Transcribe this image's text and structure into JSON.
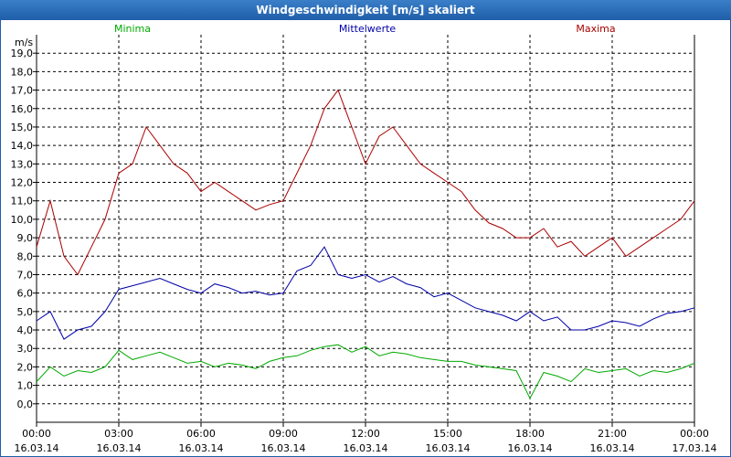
{
  "window": {
    "title": "Windgeschwindigkeit [m/s] skaliert"
  },
  "chart_data": {
    "type": "line",
    "yunit": "m/s",
    "ylim": [
      -1.0,
      20.0
    ],
    "yticks": [
      "19,0",
      "18,0",
      "17,0",
      "16,0",
      "15,0",
      "14,0",
      "13,0",
      "12,0",
      "11,0",
      "10,0",
      "9,0",
      "8,0",
      "7,0",
      "6,0",
      "5,0",
      "4,0",
      "3,0",
      "2,0",
      "1,0",
      "0,0"
    ],
    "yticks_values": [
      19,
      18,
      17,
      16,
      15,
      14,
      13,
      12,
      11,
      10,
      9,
      8,
      7,
      6,
      5,
      4,
      3,
      2,
      1,
      0
    ],
    "x_ticks": [
      {
        "time": "00:00",
        "date": "16.03.14"
      },
      {
        "time": "03:00",
        "date": "16.03.14"
      },
      {
        "time": "06:00",
        "date": "16.03.14"
      },
      {
        "time": "09:00",
        "date": "16.03.14"
      },
      {
        "time": "12:00",
        "date": "16.03.14"
      },
      {
        "time": "15:00",
        "date": "16.03.14"
      },
      {
        "time": "18:00",
        "date": "16.03.14"
      },
      {
        "time": "21:00",
        "date": "16.03.14"
      },
      {
        "time": "00:00",
        "date": "17.03.14"
      }
    ],
    "x_hours": [
      0,
      3,
      6,
      9,
      12,
      15,
      18,
      21,
      24
    ],
    "grid": true,
    "series": [
      {
        "name": "Minima",
        "color": "#00aa00",
        "x": [
          0.0,
          0.5,
          1.0,
          1.5,
          2.0,
          2.5,
          3.0,
          3.5,
          4.0,
          4.5,
          5.0,
          5.5,
          6.0,
          6.5,
          7.0,
          7.5,
          8.0,
          8.5,
          9.0,
          9.5,
          10.0,
          10.5,
          11.0,
          11.5,
          12.0,
          12.5,
          13.0,
          13.5,
          14.0,
          14.5,
          15.0,
          15.5,
          16.0,
          16.5,
          17.0,
          17.5,
          18.0,
          18.5,
          19.0,
          19.5,
          20.0,
          20.5,
          21.0,
          21.5,
          22.0,
          22.5,
          23.0,
          23.5,
          24.0
        ],
        "values": [
          1.2,
          2.0,
          1.5,
          1.8,
          1.7,
          2.0,
          2.9,
          2.4,
          2.6,
          2.8,
          2.5,
          2.2,
          2.3,
          2.0,
          2.2,
          2.1,
          1.9,
          2.3,
          2.5,
          2.6,
          2.9,
          3.1,
          3.2,
          2.8,
          3.1,
          2.6,
          2.8,
          2.7,
          2.5,
          2.4,
          2.3,
          2.3,
          2.1,
          2.0,
          1.9,
          1.8,
          0.3,
          1.7,
          1.5,
          1.2,
          1.9,
          1.7,
          1.8,
          1.9,
          1.5,
          1.8,
          1.7,
          1.9,
          2.2
        ]
      },
      {
        "name": "Mittelwerte",
        "color": "#0000aa",
        "x": [
          0.0,
          0.5,
          1.0,
          1.5,
          2.0,
          2.5,
          3.0,
          3.5,
          4.0,
          4.5,
          5.0,
          5.5,
          6.0,
          6.5,
          7.0,
          7.5,
          8.0,
          8.5,
          9.0,
          9.5,
          10.0,
          10.5,
          11.0,
          11.5,
          12.0,
          12.5,
          13.0,
          13.5,
          14.0,
          14.5,
          15.0,
          15.5,
          16.0,
          16.5,
          17.0,
          17.5,
          18.0,
          18.5,
          19.0,
          19.5,
          20.0,
          20.5,
          21.0,
          21.5,
          22.0,
          22.5,
          23.0,
          23.5,
          24.0
        ],
        "values": [
          4.5,
          5.0,
          3.5,
          4.0,
          4.2,
          5.0,
          6.2,
          6.4,
          6.6,
          6.8,
          6.5,
          6.2,
          6.0,
          6.5,
          6.3,
          6.0,
          6.1,
          5.9,
          6.0,
          7.2,
          7.5,
          8.5,
          7.0,
          6.8,
          7.0,
          6.6,
          6.9,
          6.5,
          6.3,
          5.8,
          6.0,
          5.6,
          5.2,
          5.0,
          4.8,
          4.5,
          5.0,
          4.5,
          4.7,
          4.0,
          4.0,
          4.2,
          4.5,
          4.4,
          4.2,
          4.6,
          4.9,
          5.0,
          5.2
        ]
      },
      {
        "name": "Maxima",
        "color": "#aa0000",
        "x": [
          0.0,
          0.5,
          1.0,
          1.5,
          2.0,
          2.5,
          3.0,
          3.5,
          4.0,
          4.5,
          5.0,
          5.5,
          6.0,
          6.5,
          7.0,
          7.5,
          8.0,
          8.5,
          9.0,
          9.5,
          10.0,
          10.5,
          11.0,
          11.5,
          12.0,
          12.5,
          13.0,
          13.5,
          14.0,
          14.5,
          15.0,
          15.5,
          16.0,
          16.5,
          17.0,
          17.5,
          18.0,
          18.5,
          19.0,
          19.5,
          20.0,
          20.5,
          21.0,
          21.5,
          22.0,
          22.5,
          23.0,
          23.5,
          24.0
        ],
        "values": [
          8.5,
          11.0,
          8.0,
          7.0,
          8.5,
          10.0,
          12.5,
          13.0,
          15.0,
          14.0,
          13.0,
          12.5,
          11.5,
          12.0,
          11.5,
          11.0,
          10.5,
          10.8,
          11.0,
          12.5,
          14.0,
          16.0,
          17.0,
          15.0,
          13.0,
          14.5,
          15.0,
          14.0,
          13.0,
          12.5,
          12.0,
          11.5,
          10.5,
          9.8,
          9.5,
          9.0,
          9.0,
          9.5,
          8.5,
          8.8,
          8.0,
          8.5,
          9.0,
          8.0,
          8.5,
          9.0,
          9.5,
          10.0,
          11.0
        ]
      }
    ]
  }
}
